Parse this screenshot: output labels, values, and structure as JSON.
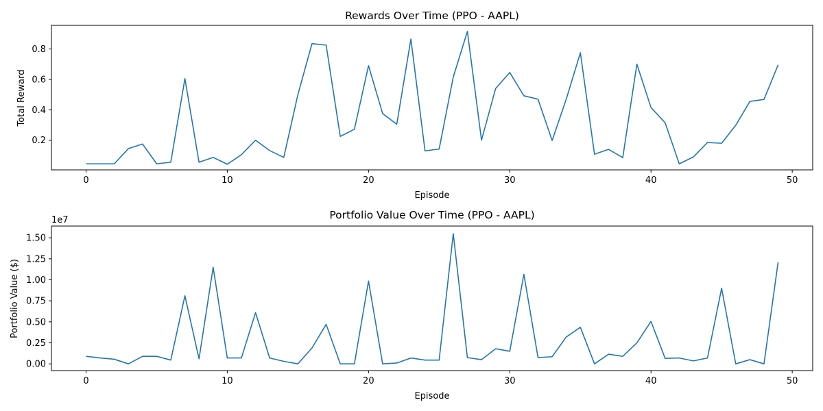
{
  "colors": {
    "series": "#1f77b4"
  },
  "chart_data": [
    {
      "type": "line",
      "title": "Rewards Over Time (PPO - AAPL)",
      "xlabel": "Episode",
      "ylabel": "Total Reward",
      "x_ticks": [
        0,
        10,
        20,
        30,
        40,
        50
      ],
      "y_ticks": [
        0.2,
        0.4,
        0.6,
        0.8
      ],
      "y_tick_labels": [
        "0.2",
        "0.4",
        "0.6",
        "0.8"
      ],
      "offset_text": "",
      "xlim": [
        -2.45,
        51.45
      ],
      "ylim": [
        0.005,
        0.955
      ],
      "grid": false,
      "x": [
        0,
        1,
        2,
        3,
        4,
        5,
        6,
        7,
        8,
        9,
        10,
        11,
        12,
        13,
        14,
        15,
        16,
        17,
        18,
        19,
        20,
        21,
        22,
        23,
        24,
        25,
        26,
        27,
        28,
        29,
        30,
        31,
        32,
        33,
        34,
        35,
        36,
        37,
        38,
        39,
        40,
        41,
        42,
        43,
        44,
        45,
        46,
        47,
        48,
        49
      ],
      "series": [
        {
          "values": [
            0.045,
            0.045,
            0.045,
            0.145,
            0.175,
            0.045,
            0.055,
            0.605,
            0.055,
            0.087,
            0.042,
            0.105,
            0.2,
            0.132,
            0.087,
            0.5,
            0.835,
            0.825,
            0.225,
            0.272,
            0.69,
            0.375,
            0.305,
            0.865,
            0.13,
            0.142,
            0.615,
            0.915,
            0.2,
            0.54,
            0.645,
            0.492,
            0.47,
            0.198,
            0.47,
            0.775,
            0.108,
            0.14,
            0.085,
            0.7,
            0.415,
            0.315,
            0.045,
            0.09,
            0.185,
            0.18,
            0.298,
            0.455,
            0.468,
            0.695
          ]
        }
      ]
    },
    {
      "type": "line",
      "title": "Portfolio Value Over Time (PPO - AAPL)",
      "xlabel": "Episode",
      "ylabel": "Portfolio Value ($)",
      "x_ticks": [
        0,
        10,
        20,
        30,
        40,
        50
      ],
      "y_ticks": [
        0.0,
        0.25,
        0.5,
        0.75,
        1.0,
        1.25,
        1.5
      ],
      "y_tick_labels": [
        "0.00",
        "0.25",
        "0.50",
        "0.75",
        "1.00",
        "1.25",
        "1.50"
      ],
      "offset_text": "1e7",
      "xlim": [
        -2.45,
        51.45
      ],
      "ylim": [
        -0.08,
        1.64
      ],
      "grid": false,
      "x": [
        0,
        1,
        2,
        3,
        4,
        5,
        6,
        7,
        8,
        9,
        10,
        11,
        12,
        13,
        14,
        15,
        16,
        17,
        18,
        19,
        20,
        21,
        22,
        23,
        24,
        25,
        26,
        27,
        28,
        29,
        30,
        31,
        32,
        33,
        34,
        35,
        36,
        37,
        38,
        39,
        40,
        41,
        42,
        43,
        44,
        45,
        46,
        47,
        48,
        49
      ],
      "series": [
        {
          "values": [
            0.09,
            0.07,
            0.055,
            0.0,
            0.09,
            0.09,
            0.045,
            0.81,
            0.06,
            1.15,
            0.07,
            0.07,
            0.61,
            0.07,
            0.03,
            0.0,
            0.19,
            0.47,
            0.0,
            0.0,
            0.985,
            0.0,
            0.01,
            0.07,
            0.045,
            0.045,
            1.55,
            0.075,
            0.05,
            0.18,
            0.15,
            1.065,
            0.075,
            0.085,
            0.32,
            0.435,
            0.0,
            0.115,
            0.09,
            0.25,
            0.505,
            0.065,
            0.07,
            0.035,
            0.07,
            0.9,
            0.0,
            0.05,
            0.0,
            1.21
          ]
        }
      ]
    }
  ]
}
